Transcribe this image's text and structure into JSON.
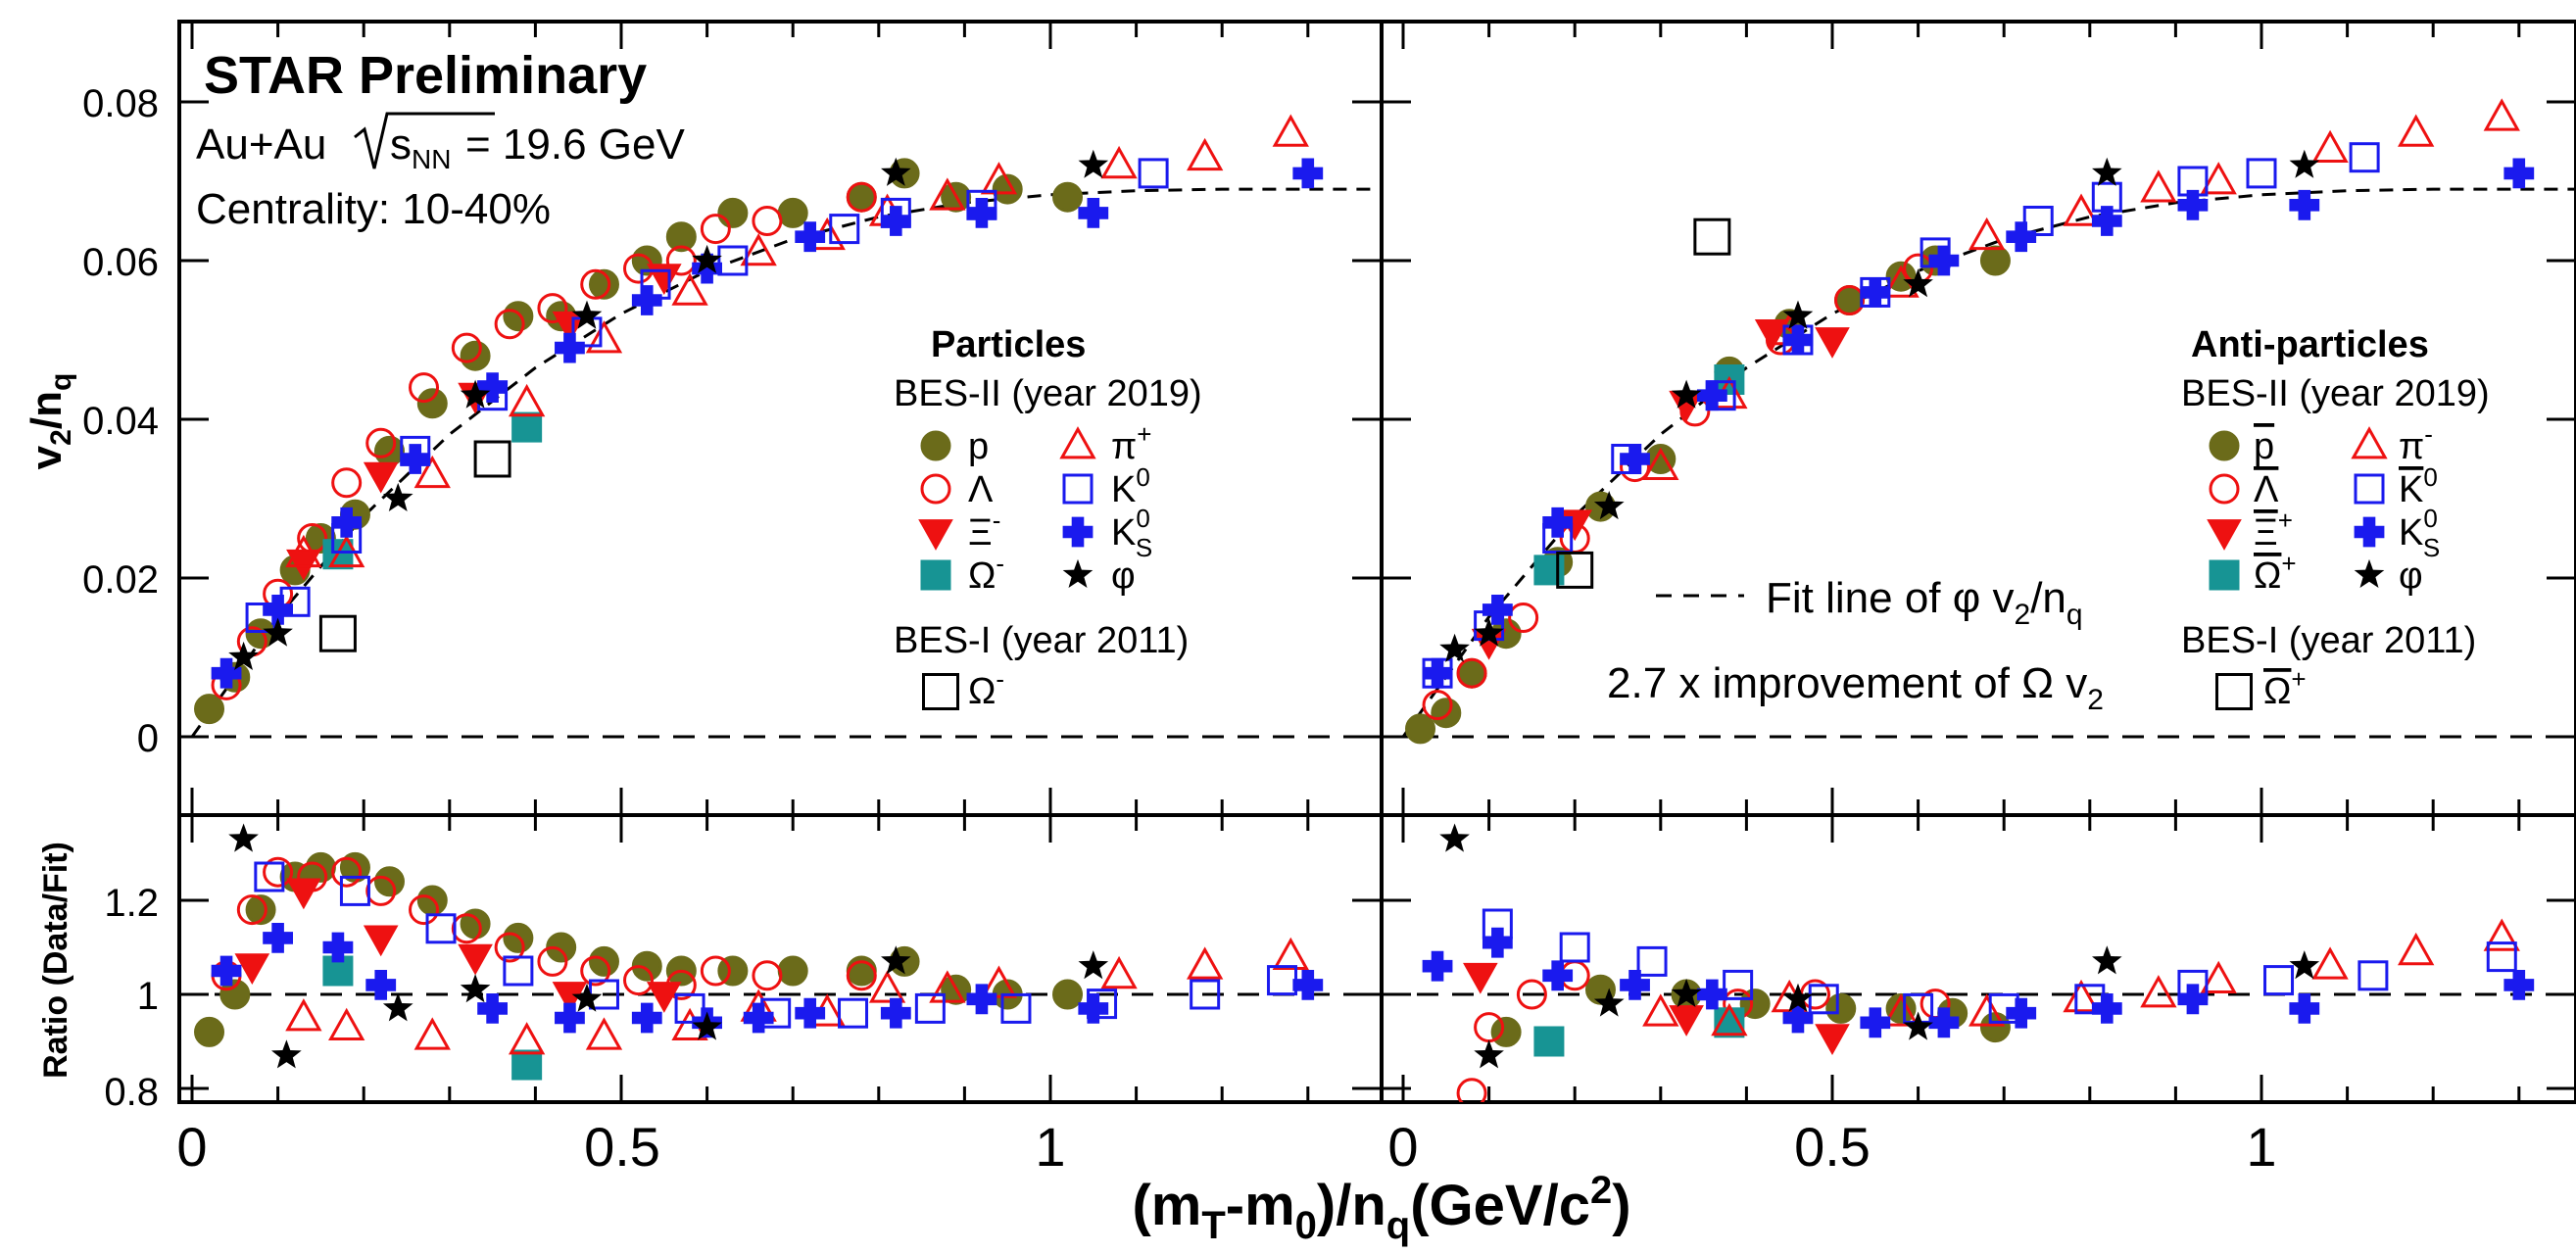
{
  "header": {
    "title": "STAR Preliminary",
    "system_prefix": "Au+Au",
    "sqrt_label": "s",
    "sqrt_sub": "NN",
    "energy": "= 19.6 GeV",
    "centrality": "Centrality: 10-40%"
  },
  "axes": {
    "ylabel_main": "v",
    "ylabel_main_sub1": "2",
    "ylabel_main_mid": "/n",
    "ylabel_main_sub2": "q",
    "ylabel_ratio": "Ratio (Data/Fit)",
    "xlabel_a": "(m",
    "xlabel_sub1": "T",
    "xlabel_b": "-m",
    "xlabel_sub2": "0",
    "xlabel_c": ")/n",
    "xlabel_sub3": "q",
    "xlabel_d": "(GeV/c",
    "xlabel_sup": "2",
    "xlabel_e": ")",
    "xticks": [
      "0",
      "0.5",
      "1"
    ],
    "yticks_main": [
      "0",
      "0.02",
      "0.04",
      "0.06",
      "0.08"
    ],
    "yticks_ratio": [
      "0.8",
      "1",
      "1.2"
    ]
  },
  "legend_left": {
    "heading": "Particles",
    "bes2": "BES-II (year 2019)",
    "bes1": "BES-I (year 2011)",
    "items": [
      {
        "symbol": "p",
        "label": "p"
      },
      {
        "symbol": "Λ",
        "label": "Λ"
      },
      {
        "symbol": "Ξ",
        "label": "Ξ",
        "sup": "-"
      },
      {
        "symbol": "Ω",
        "label": "Ω",
        "sup": "-"
      },
      {
        "symbol": "π",
        "label": "π",
        "sup": "+"
      },
      {
        "symbol": "K",
        "label": "K",
        "sup": "0",
        "sub": ""
      },
      {
        "symbol": "K",
        "label": "K",
        "sup": "0",
        "sub": "S"
      },
      {
        "symbol": "φ",
        "label": "φ"
      }
    ],
    "bes1_item": {
      "label": "Ω",
      "sup": "-"
    }
  },
  "legend_right": {
    "heading": "Anti-particles",
    "bes2": "BES-II (year 2019)",
    "bes1": "BES-I (year 2011)",
    "items": [
      {
        "label": "p"
      },
      {
        "label": "Λ"
      },
      {
        "label": "Ξ",
        "sup": "+"
      },
      {
        "label": "Ω",
        "sup": "+"
      },
      {
        "label": "π",
        "sup": "-"
      },
      {
        "label": "K",
        "sup": "0"
      },
      {
        "label": "K",
        "sup": "0",
        "sub": "S"
      },
      {
        "label": "φ"
      }
    ],
    "bes1_item": {
      "label": "Ω",
      "sup": "+"
    },
    "fit_line": "Fit line of φ v",
    "fit_line_sub1": "2",
    "fit_line_mid": "/n",
    "fit_line_sub2": "q",
    "improvement": "2.7 x improvement of Ω v",
    "improvement_sub": "2"
  },
  "colors": {
    "proton": "#6b6b1a",
    "red": "#ee1111",
    "blue": "#1a1aee",
    "teal": "#179494",
    "black": "#000000"
  },
  "chart_data": [
    {
      "type": "scatter",
      "panel": "Particles, v2/nq",
      "xlim": [
        0,
        1.38
      ],
      "ylim": [
        -0.009,
        0.091
      ],
      "series": [
        {
          "name": "p",
          "x": [
            0.02,
            0.05,
            0.08,
            0.12,
            0.15,
            0.19,
            0.23,
            0.28,
            0.33,
            0.38,
            0.43,
            0.48,
            0.53,
            0.57,
            0.63,
            0.7,
            0.78,
            0.83,
            0.89,
            0.95,
            1.02
          ],
          "y": [
            0.0035,
            0.0075,
            0.013,
            0.021,
            0.025,
            0.028,
            0.036,
            0.042,
            0.048,
            0.053,
            0.053,
            0.057,
            0.06,
            0.063,
            0.066,
            0.066,
            0.068,
            0.071,
            0.068,
            0.069,
            0.068
          ]
        },
        {
          "name": "Λ",
          "x": [
            0.04,
            0.07,
            0.1,
            0.14,
            0.18,
            0.22,
            0.27,
            0.32,
            0.37,
            0.42,
            0.47,
            0.52,
            0.57,
            0.61,
            0.67,
            0.78
          ],
          "y": [
            0.0065,
            0.012,
            0.018,
            0.025,
            0.032,
            0.037,
            0.044,
            0.049,
            0.052,
            0.054,
            0.057,
            0.059,
            0.06,
            0.064,
            0.065,
            0.068
          ]
        },
        {
          "name": "Ξ-",
          "x": [
            0.13,
            0.22,
            0.33,
            0.44,
            0.55
          ],
          "y": [
            0.022,
            0.033,
            0.043,
            0.052,
            0.058
          ]
        },
        {
          "name": "Ω-",
          "x": [
            0.17,
            0.39
          ],
          "y": [
            0.023,
            0.039
          ]
        },
        {
          "name": "π+",
          "x": [
            0.13,
            0.18,
            0.28,
            0.39,
            0.48,
            0.58,
            0.66,
            0.74,
            0.81,
            0.88,
            0.94,
            1.08,
            1.18,
            1.28
          ],
          "y": [
            0.023,
            0.023,
            0.033,
            0.042,
            0.05,
            0.056,
            0.061,
            0.063,
            0.066,
            0.068,
            0.07,
            0.072,
            0.073,
            0.076
          ]
        },
        {
          "name": "K0",
          "x": [
            0.08,
            0.12,
            0.18,
            0.26,
            0.35,
            0.46,
            0.54,
            0.63,
            0.76,
            0.82,
            0.92,
            1.12
          ],
          "y": [
            0.015,
            0.017,
            0.025,
            0.036,
            0.043,
            0.051,
            0.057,
            0.06,
            0.064,
            0.066,
            0.067,
            0.071
          ]
        },
        {
          "name": "K0S",
          "x": [
            0.04,
            0.1,
            0.18,
            0.26,
            0.35,
            0.44,
            0.53,
            0.6,
            0.72,
            0.82,
            0.92,
            1.05,
            1.3
          ],
          "y": [
            0.008,
            0.016,
            0.027,
            0.035,
            0.044,
            0.049,
            0.055,
            0.059,
            0.063,
            0.065,
            0.066,
            0.066,
            0.071
          ]
        },
        {
          "name": "φ",
          "x": [
            0.06,
            0.1,
            0.24,
            0.33,
            0.46,
            0.6,
            0.82,
            1.05
          ],
          "y": [
            0.01,
            0.013,
            0.03,
            0.043,
            0.053,
            0.06,
            0.071,
            0.072
          ]
        },
        {
          "name": "Ω- (BES-I)",
          "x": [
            0.17,
            0.35
          ],
          "y": [
            0.013,
            0.035
          ]
        }
      ],
      "fit": {
        "name": "Fit line of φ v2/nq",
        "x": [
          0,
          0.1,
          0.2,
          0.3,
          0.4,
          0.5,
          0.6,
          0.7,
          0.8,
          0.9,
          1.0,
          1.1,
          1.2,
          1.3,
          1.38
        ],
        "y": [
          0,
          0.0151,
          0.0278,
          0.0381,
          0.0465,
          0.0533,
          0.0587,
          0.0627,
          0.0655,
          0.0673,
          0.0683,
          0.0688,
          0.069,
          0.069,
          0.069
        ]
      }
    },
    {
      "type": "scatter",
      "panel": "Anti-particles, v2/nq",
      "xlim": [
        0,
        1.38
      ],
      "ylim": [
        -0.009,
        0.091
      ],
      "series": [
        {
          "name": "p̄",
          "x": [
            0.02,
            0.05,
            0.08,
            0.12,
            0.18,
            0.23,
            0.3,
            0.38,
            0.45,
            0.52,
            0.58,
            0.62,
            0.69
          ],
          "y": [
            0.001,
            0.003,
            0.008,
            0.013,
            0.022,
            0.029,
            0.035,
            0.046,
            0.052,
            0.055,
            0.058,
            0.06,
            0.06
          ]
        },
        {
          "name": "Λ̄",
          "x": [
            0.04,
            0.08,
            0.14,
            0.2,
            0.27,
            0.34,
            0.44,
            0.52,
            0.6
          ],
          "y": [
            0.004,
            0.008,
            0.015,
            0.025,
            0.034,
            0.041,
            0.05,
            0.055,
            0.059
          ]
        },
        {
          "name": "Ξ+",
          "x": [
            0.1,
            0.2,
            0.33,
            0.43,
            0.5
          ],
          "y": [
            0.012,
            0.027,
            0.042,
            0.051,
            0.05
          ]
        },
        {
          "name": "Ω+",
          "x": [
            0.17,
            0.38
          ],
          "y": [
            0.021,
            0.045
          ]
        },
        {
          "name": "π-",
          "x": [
            0.3,
            0.38,
            0.45,
            0.58,
            0.68,
            0.79,
            0.88,
            0.95,
            1.08,
            1.18,
            1.28
          ],
          "y": [
            0.034,
            0.043,
            0.051,
            0.057,
            0.063,
            0.066,
            0.069,
            0.07,
            0.074,
            0.076,
            0.078
          ]
        },
        {
          "name": "K0",
          "x": [
            0.04,
            0.1,
            0.18,
            0.26,
            0.37,
            0.46,
            0.55,
            0.62,
            0.74,
            0.82,
            0.92,
            1.0,
            1.12
          ],
          "y": [
            0.008,
            0.014,
            0.025,
            0.035,
            0.043,
            0.05,
            0.056,
            0.061,
            0.065,
            0.068,
            0.07,
            0.071,
            0.073
          ]
        },
        {
          "name": "K0S",
          "x": [
            0.04,
            0.11,
            0.18,
            0.27,
            0.36,
            0.46,
            0.55,
            0.63,
            0.72,
            0.82,
            0.92,
            1.05,
            1.3
          ],
          "y": [
            0.008,
            0.016,
            0.027,
            0.035,
            0.043,
            0.05,
            0.056,
            0.06,
            0.063,
            0.065,
            0.067,
            0.067,
            0.071
          ]
        },
        {
          "name": "φ",
          "x": [
            0.06,
            0.1,
            0.24,
            0.33,
            0.46,
            0.6,
            0.82,
            1.05
          ],
          "y": [
            0.011,
            0.013,
            0.029,
            0.043,
            0.053,
            0.057,
            0.071,
            0.072
          ]
        },
        {
          "name": "Ω+ (BES-I)",
          "x": [
            0.2,
            0.36
          ],
          "y": [
            0.021,
            0.063
          ]
        }
      ]
    },
    {
      "type": "scatter",
      "panel": "Particles, Ratio (Data/Fit)",
      "xlim": [
        0,
        1.38
      ],
      "ylim": [
        0.775,
        1.38
      ],
      "series": [
        {
          "name": "p",
          "x": [
            0.02,
            0.05,
            0.08,
            0.12,
            0.15,
            0.19,
            0.23,
            0.28,
            0.33,
            0.38,
            0.43,
            0.48,
            0.53,
            0.57,
            0.63,
            0.7,
            0.78,
            0.83,
            0.89,
            0.95,
            1.02
          ],
          "y": [
            0.92,
            1.0,
            1.18,
            1.25,
            1.27,
            1.27,
            1.24,
            1.2,
            1.15,
            1.12,
            1.1,
            1.07,
            1.06,
            1.05,
            1.05,
            1.05,
            1.05,
            1.07,
            1.01,
            1.0,
            1.0
          ]
        },
        {
          "name": "Λ",
          "x": [
            0.04,
            0.07,
            0.1,
            0.14,
            0.18,
            0.22,
            0.27,
            0.32,
            0.37,
            0.42,
            0.47,
            0.52,
            0.57,
            0.61,
            0.67,
            0.78
          ],
          "y": [
            1.04,
            1.18,
            1.26,
            1.25,
            1.26,
            1.22,
            1.18,
            1.14,
            1.1,
            1.07,
            1.05,
            1.03,
            1.02,
            1.05,
            1.04,
            1.04
          ]
        },
        {
          "name": "Ξ-",
          "x": [
            0.07,
            0.13,
            0.22,
            0.33,
            0.44,
            0.55
          ],
          "y": [
            1.06,
            1.22,
            1.12,
            1.08,
            1.0,
            1.0
          ]
        },
        {
          "name": "Ω-",
          "x": [
            0.17,
            0.39
          ],
          "y": [
            1.05,
            0.85
          ]
        },
        {
          "name": "π+",
          "x": [
            0.13,
            0.18,
            0.28,
            0.39,
            0.48,
            0.58,
            0.66,
            0.74,
            0.81,
            0.88,
            0.94,
            1.08,
            1.18,
            1.28
          ],
          "y": [
            0.95,
            0.93,
            0.91,
            0.9,
            0.91,
            0.93,
            0.97,
            0.96,
            1.01,
            1.01,
            1.02,
            1.04,
            1.06,
            1.08
          ]
        },
        {
          "name": "K0",
          "x": [
            0.09,
            0.19,
            0.29,
            0.38,
            0.48,
            0.58,
            0.68,
            0.77,
            0.86,
            0.96,
            1.06,
            1.18,
            1.27
          ],
          "y": [
            1.25,
            1.22,
            1.14,
            1.05,
            1.0,
            0.97,
            0.96,
            0.96,
            0.97,
            0.97,
            0.98,
            1.0,
            1.03
          ]
        },
        {
          "name": "K0S",
          "x": [
            0.04,
            0.1,
            0.17,
            0.22,
            0.35,
            0.44,
            0.53,
            0.6,
            0.66,
            0.72,
            0.82,
            0.92,
            1.05,
            1.3
          ],
          "y": [
            1.05,
            1.12,
            1.1,
            1.02,
            0.97,
            0.95,
            0.95,
            0.94,
            0.95,
            0.96,
            0.96,
            0.99,
            0.97,
            1.02
          ]
        },
        {
          "name": "φ",
          "x": [
            0.06,
            0.11,
            0.24,
            0.33,
            0.46,
            0.6,
            0.82,
            1.05
          ],
          "y": [
            1.33,
            0.87,
            0.97,
            1.01,
            0.99,
            0.93,
            1.07,
            1.06
          ]
        }
      ],
      "reference_line": 1.0
    },
    {
      "type": "scatter",
      "panel": "Anti-particles, Ratio (Data/Fit)",
      "xlim": [
        0,
        1.38
      ],
      "ylim": [
        0.775,
        1.38
      ],
      "series": [
        {
          "name": "p̄",
          "x": [
            0.12,
            0.23,
            0.33,
            0.41,
            0.51,
            0.58,
            0.64,
            0.69
          ],
          "y": [
            0.92,
            1.01,
            1.0,
            0.98,
            0.97,
            0.97,
            0.96,
            0.93
          ]
        },
        {
          "name": "Λ̄",
          "x": [
            0.08,
            0.1,
            0.15,
            0.2,
            0.39,
            0.48,
            0.62
          ],
          "y": [
            0.79,
            0.93,
            1.0,
            1.04,
            0.98,
            1.0,
            0.98
          ]
        },
        {
          "name": "Ξ+",
          "x": [
            0.09,
            0.33,
            0.5
          ],
          "y": [
            1.04,
            0.95,
            0.91
          ]
        },
        {
          "name": "Ω+",
          "x": [
            0.17,
            0.38
          ],
          "y": [
            0.9,
            0.94
          ]
        },
        {
          "name": "π-",
          "x": [
            0.3,
            0.38,
            0.45,
            0.58,
            0.68,
            0.79,
            0.88,
            0.95,
            1.08,
            1.18,
            1.28
          ],
          "y": [
            0.96,
            0.94,
            0.99,
            0.96,
            0.96,
            0.99,
            1.0,
            1.03,
            1.06,
            1.09,
            1.12
          ]
        },
        {
          "name": "K0",
          "x": [
            0.11,
            0.2,
            0.29,
            0.39,
            0.49,
            0.6,
            0.7,
            0.8,
            0.92,
            1.02,
            1.13,
            1.28
          ],
          "y": [
            1.15,
            1.1,
            1.07,
            1.02,
            0.99,
            0.97,
            0.97,
            0.99,
            1.02,
            1.03,
            1.04,
            1.08
          ]
        },
        {
          "name": "K0S",
          "x": [
            0.04,
            0.11,
            0.18,
            0.27,
            0.36,
            0.46,
            0.55,
            0.63,
            0.72,
            0.82,
            0.92,
            1.05,
            1.3
          ],
          "y": [
            1.06,
            1.11,
            1.04,
            1.02,
            1.0,
            0.95,
            0.94,
            0.94,
            0.96,
            0.97,
            0.99,
            0.97,
            1.02
          ]
        },
        {
          "name": "φ",
          "x": [
            0.06,
            0.1,
            0.24,
            0.33,
            0.46,
            0.6,
            0.82,
            1.05
          ],
          "y": [
            1.33,
            0.87,
            0.98,
            1.0,
            0.99,
            0.93,
            1.07,
            1.06
          ]
        }
      ],
      "reference_line": 1.0
    }
  ]
}
